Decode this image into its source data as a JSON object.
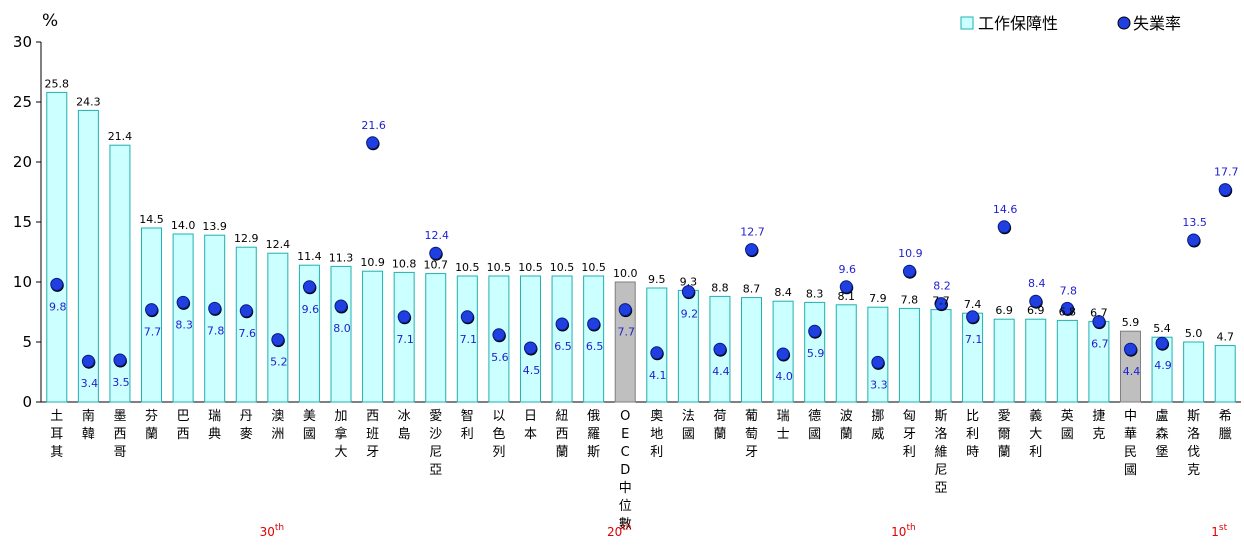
{
  "chart_data": {
    "type": "bar",
    "ylabel": "%",
    "ylim": [
      0,
      30
    ],
    "yticks": [
      0,
      5,
      10,
      15,
      20,
      25,
      30
    ],
    "legend_position": "top-right",
    "categories": [
      "土耳其",
      "南韓",
      "墨西哥",
      "芬蘭",
      "巴西",
      "瑞典",
      "丹麥",
      "澳洲",
      "美國",
      "加拿大",
      "西班牙",
      "冰島",
      "愛沙尼亞",
      "智利",
      "以色列",
      "日本",
      "紐西蘭",
      "俄羅斯",
      "OECD中位數",
      "奧地利",
      "法國",
      "荷蘭",
      "葡萄牙",
      "瑞士",
      "德國",
      "波蘭",
      "挪威",
      "匈牙利",
      "斯洛維尼亞",
      "比利時",
      "愛爾蘭",
      "義大利",
      "英國",
      "捷克",
      "中華民國",
      "盧森堡",
      "斯洛伐克",
      "希臘"
    ],
    "highlight_categories": [
      "OECD中位數",
      "中華民國"
    ],
    "series": [
      {
        "name": "工作保障性",
        "type": "bar",
        "color": "#ccffff",
        "highlight_color": "#bfbfbf",
        "values": [
          25.8,
          24.3,
          21.4,
          14.5,
          14.0,
          13.9,
          12.9,
          12.4,
          11.4,
          11.3,
          10.9,
          10.8,
          10.7,
          10.5,
          10.5,
          10.5,
          10.5,
          10.5,
          10.0,
          9.5,
          9.3,
          8.8,
          8.7,
          8.4,
          8.3,
          8.1,
          7.9,
          7.8,
          7.7,
          7.4,
          6.9,
          6.9,
          6.8,
          6.7,
          5.9,
          5.4,
          5.0,
          4.7
        ]
      },
      {
        "name": "失業率",
        "type": "scatter",
        "color": "#1f3fe0",
        "values": [
          9.8,
          3.4,
          3.5,
          7.7,
          8.3,
          7.8,
          7.6,
          5.2,
          9.6,
          8.0,
          21.6,
          7.1,
          12.4,
          7.1,
          5.6,
          4.5,
          6.5,
          6.5,
          7.7,
          4.1,
          9.2,
          4.4,
          12.7,
          4.0,
          5.9,
          9.6,
          3.3,
          10.9,
          8.2,
          7.1,
          14.6,
          8.4,
          7.8,
          6.7,
          4.4,
          4.9,
          13.5,
          17.7
        ]
      }
    ],
    "rank_annotations": [
      {
        "category": "澳洲",
        "base": "30",
        "sup": "th"
      },
      {
        "category": "OECD中位數",
        "base": "20",
        "sup": "th"
      },
      {
        "category": "匈牙利",
        "base": "10",
        "sup": "th"
      },
      {
        "category": "希臘",
        "base": "1",
        "sup": "st"
      }
    ]
  }
}
